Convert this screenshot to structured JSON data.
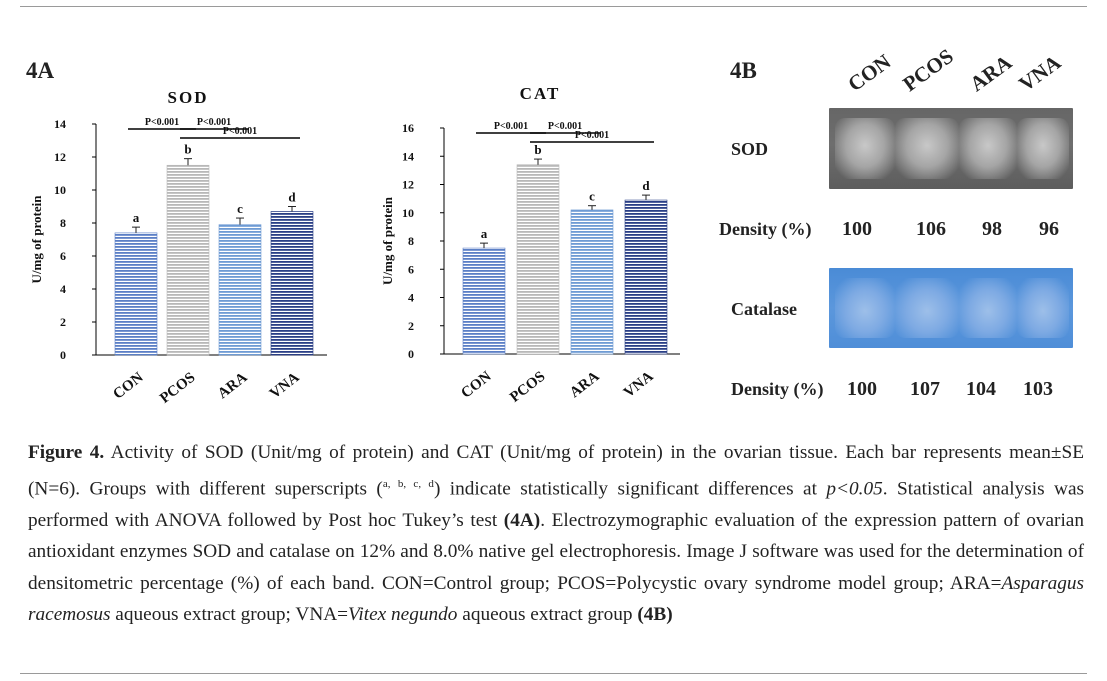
{
  "panels": {
    "a_label": "4A",
    "b_label": "4B"
  },
  "chart_data": [
    {
      "type": "bar",
      "title": "SOD",
      "ylabel": "U/mg of protein",
      "xlabel": "",
      "categories": [
        "CON",
        "PCOS",
        "ARA",
        "VNA"
      ],
      "values": [
        7.4,
        11.5,
        7.9,
        8.7
      ],
      "errors": [
        0.35,
        0.4,
        0.4,
        0.3
      ],
      "letters": [
        "a",
        "b",
        "c",
        "d"
      ],
      "ylim": [
        0,
        14
      ],
      "yticks": [
        0,
        2,
        4,
        6,
        8,
        10,
        12,
        14
      ],
      "bar_colors": [
        "#5b7fc6",
        "#b8b8b8",
        "#6e9bd4",
        "#2a3f86"
      ],
      "comparisons": [
        {
          "from": 0,
          "to": 1,
          "label": "P<0.001",
          "level": 0
        },
        {
          "from": 1,
          "to": 2,
          "label": "P<0.001",
          "level": 0
        },
        {
          "from": 1,
          "to": 3,
          "label": "P<0.001",
          "level": 1
        }
      ]
    },
    {
      "type": "bar",
      "title": "CAT",
      "ylabel": "U/mg of protein",
      "xlabel": "",
      "categories": [
        "CON",
        "PCOS",
        "ARA",
        "VNA"
      ],
      "values": [
        7.5,
        13.4,
        10.2,
        10.9
      ],
      "errors": [
        0.35,
        0.4,
        0.3,
        0.35
      ],
      "letters": [
        "a",
        "b",
        "c",
        "d"
      ],
      "ylim": [
        0,
        16
      ],
      "yticks": [
        0,
        2,
        4,
        6,
        8,
        10,
        12,
        14,
        16
      ],
      "bar_colors": [
        "#5b7fc6",
        "#b8b8b8",
        "#6e9bd4",
        "#2a3f86"
      ],
      "comparisons": [
        {
          "from": 0,
          "to": 1,
          "label": "P<0.001",
          "level": 0
        },
        {
          "from": 1,
          "to": 2,
          "label": "P<0.001",
          "level": 0
        },
        {
          "from": 1,
          "to": 3,
          "label": "P<0.001",
          "level": 1
        }
      ]
    }
  ],
  "gel": {
    "lanes": [
      "CON",
      "PCOS",
      "ARA",
      "VNA"
    ],
    "sod_label": "SOD",
    "catalase_label": "Catalase",
    "density_label": "Density  (%)",
    "sod_density": [
      "100",
      "106",
      "98",
      "96"
    ],
    "catalase_density": [
      "100",
      "107",
      "104",
      "103"
    ]
  },
  "caption": {
    "fig_label": "Figure 4.",
    "text_1": " Activity of SOD (Unit/mg of protein) and CAT (Unit/mg of protein) in the ovarian tissue. Each bar represents mean±SE (N=6). Groups with different superscripts (",
    "superscripts": "a, b, c, d",
    "text_2": ") indicate statistically significant differences at ",
    "p_value": "p<0.05",
    "text_3": ". Statistical analysis was performed with ANOVA followed by Post hoc Tukey’s test ",
    "ref_a": "(4A)",
    "text_4": ". Electrozymographic evaluation of the expression pattern of ovarian antioxidant enzymes SOD and catalase on 12% and 8.0% native gel electrophoresis. Image J software was used for the determination of densitometric percentage (%) of each band. CON=Control group; PCOS=Polycystic ovary syndrome model group; ARA=",
    "ara_species": "Asparagus racemosus",
    "text_5": " aqueous extract group; VNA=",
    "vna_species": "Vitex negundo",
    "text_6": " aqueous extract group ",
    "ref_b": "(4B)"
  }
}
